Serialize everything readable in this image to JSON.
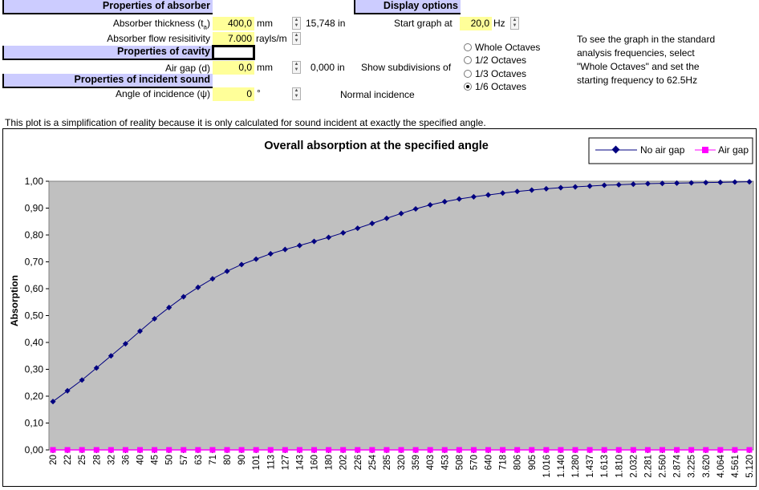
{
  "absorber": {
    "header": "Properties of absorber",
    "thickness_label": "Absorber thickness (t",
    "thickness_sub": "a",
    "thickness_value": "400,0",
    "thickness_unit": "mm",
    "thickness_in": "15,748",
    "thickness_in_unit": "in",
    "resistivity_label": "Absorber flow resisitivity",
    "resistivity_value": "7.000",
    "resistivity_unit": "rayls/m"
  },
  "cavity": {
    "header": "Properties of cavity",
    "airgap_label": "Air gap (d)",
    "airgap_value": "0,0",
    "airgap_unit": "mm",
    "airgap_in": "0,000",
    "airgap_in_unit": "in"
  },
  "incident": {
    "header": "Properties of incident sound",
    "angle_label": "Angle of incidence (ψ)",
    "angle_value": "0",
    "angle_unit": "°",
    "incidence_text": "Normal incidence"
  },
  "display": {
    "header": "Display options",
    "start_label": "Start graph at",
    "start_value": "20,0",
    "start_unit": "Hz",
    "subdiv_label": "Show subdivisions of",
    "options": [
      "Whole Octaves",
      "1/2 Octaves",
      "1/3 Octaves",
      "1/6 Octaves"
    ],
    "selected": "1/6 Octaves",
    "hint_lines": [
      "To see the graph in the standard",
      "analysis frequencies, select",
      "\"Whole Octaves\" and set the",
      "starting frequency to 62.5Hz"
    ]
  },
  "note": "This plot is a simplification of reality because it is only calculated for sound incident at exactly the specified angle.",
  "colors": {
    "header_bg": "#ccccff",
    "input_bg": "#ffff99",
    "plot_bg": "#c0c0c0",
    "series_no_gap": "#000080",
    "series_air_gap": "#ff00ff"
  },
  "chart_data": {
    "type": "line",
    "title": "Overall absorption at the specified angle",
    "xlabel": "",
    "ylabel": "Absorption",
    "ylim": [
      0,
      1
    ],
    "yticks": [
      "0,00",
      "0,10",
      "0,20",
      "0,30",
      "0,40",
      "0,50",
      "0,60",
      "0,70",
      "0,80",
      "0,90",
      "1,00"
    ],
    "grid": false,
    "legend_position": "top-right",
    "categories": [
      "20",
      "22",
      "25",
      "28",
      "32",
      "36",
      "40",
      "45",
      "50",
      "57",
      "63",
      "71",
      "80",
      "90",
      "101",
      "113",
      "127",
      "143",
      "160",
      "180",
      "202",
      "226",
      "254",
      "285",
      "320",
      "359",
      "403",
      "453",
      "508",
      "570",
      "640",
      "718",
      "806",
      "905",
      "1.016",
      "1.140",
      "1.280",
      "1.437",
      "1.613",
      "1.810",
      "2.032",
      "2.281",
      "2.560",
      "2.874",
      "3.225",
      "3.620",
      "4.064",
      "4.561",
      "5.120"
    ],
    "series": [
      {
        "name": "No air gap",
        "values": [
          0.18,
          0.22,
          0.26,
          0.305,
          0.35,
          0.395,
          0.442,
          0.488,
          0.53,
          0.57,
          0.605,
          0.637,
          0.665,
          0.69,
          0.71,
          0.73,
          0.746,
          0.761,
          0.776,
          0.791,
          0.808,
          0.825,
          0.843,
          0.862,
          0.88,
          0.897,
          0.912,
          0.924,
          0.934,
          0.942,
          0.949,
          0.956,
          0.962,
          0.967,
          0.972,
          0.976,
          0.979,
          0.982,
          0.985,
          0.987,
          0.989,
          0.991,
          0.992,
          0.993,
          0.994,
          0.995,
          0.996,
          0.997,
          0.998
        ]
      },
      {
        "name": "Air gap",
        "values": [
          0,
          0,
          0,
          0,
          0,
          0,
          0,
          0,
          0,
          0,
          0,
          0,
          0,
          0,
          0,
          0,
          0,
          0,
          0,
          0,
          0,
          0,
          0,
          0,
          0,
          0,
          0,
          0,
          0,
          0,
          0,
          0,
          0,
          0,
          0,
          0,
          0,
          0,
          0,
          0,
          0,
          0,
          0,
          0,
          0,
          0,
          0,
          0,
          0
        ]
      }
    ]
  }
}
